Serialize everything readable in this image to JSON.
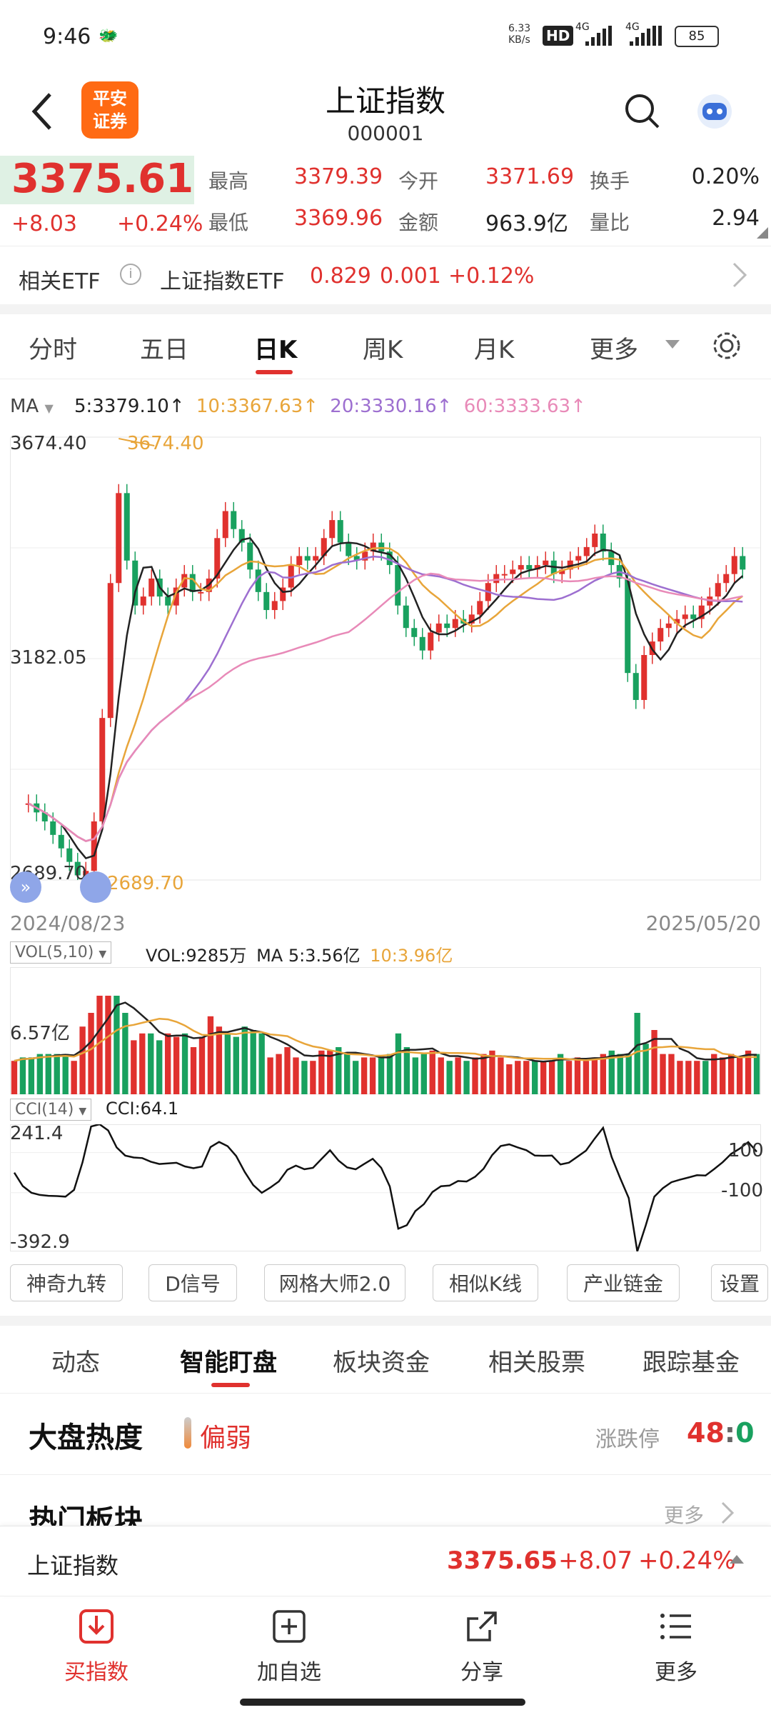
{
  "status": {
    "time": "9:46",
    "net_speed": "6.33 KB/s",
    "hd": "HD",
    "signal1": "4G",
    "signal2": "4G",
    "battery": "85"
  },
  "header": {
    "title": "上证指数",
    "code": "000001",
    "logo_line1": "平安",
    "logo_line2": "证券"
  },
  "quote": {
    "price": "3375.61",
    "change": "+8.03",
    "change_pct": "+0.24%",
    "high_label": "最高",
    "high": "3379.39",
    "open_label": "今开",
    "open": "3371.69",
    "turnover_label": "换手",
    "turnover": "0.20%",
    "low_label": "最低",
    "low": "3369.96",
    "amount_label": "金额",
    "amount": "963.9亿",
    "vol_ratio_label": "量比",
    "vol_ratio": "2.94"
  },
  "etf": {
    "label": "相关ETF",
    "name": "上证指数ETF",
    "price": "0.829",
    "change": "0.001",
    "pct": "+0.12%"
  },
  "tabs": [
    "分时",
    "五日",
    "日K",
    "周K",
    "月K",
    "更多"
  ],
  "ma": {
    "label": "MA",
    "ma5": "5:3379.10↑",
    "ma10": "10:3367.63↑",
    "ma20": "20:3330.16↑",
    "ma60": "60:3333.63↑"
  },
  "chart_labels": {
    "y_high": "3674.40",
    "high_mark": "3674.40",
    "y_mid": "3182.05",
    "y_low": "2689.70",
    "low_mark": "2689.70",
    "date_start": "2024/08/23",
    "date_end": "2025/05/20"
  },
  "vol": {
    "label": "VOL(5,10)",
    "text": "VOL:9285万",
    "ma5": "MA 5:3.56亿",
    "ma10": "10:3.96亿",
    "y_label": "6.57亿"
  },
  "cci": {
    "label": "CCI(14)",
    "text": "CCI:64.1",
    "y_top": "241.4",
    "y_bottom": "-392.9",
    "l100": "100",
    "lm100": "-100"
  },
  "tools": [
    "神奇九转",
    "D信号",
    "网格大师2.0",
    "相似K线",
    "产业链金",
    "设置"
  ],
  "sections": [
    "动态",
    "智能盯盘",
    "板块资金",
    "相关股票",
    "跟踪基金"
  ],
  "heat": {
    "title": "大盘热度",
    "level": "偏弱",
    "limit_label": "涨跌停",
    "up": "48",
    "sep": ":",
    "down": "0"
  },
  "hot": {
    "title": "热门板块",
    "more": "更多"
  },
  "ticker": {
    "name": "上证指数",
    "price": "3375.65",
    "change": "+8.07",
    "pct": "+0.24%"
  },
  "nav": [
    "买指数",
    "加自选",
    "分享",
    "更多"
  ],
  "colors": {
    "up": "#e0312e",
    "down": "#19a15f",
    "ma5": "#222222",
    "ma10": "#e8a53a",
    "ma20": "#9d6fd0",
    "ma60": "#e88ab8"
  },
  "chart_data": {
    "type": "candlestick",
    "date_range": [
      "2024/08/23",
      "2025/05/20"
    ],
    "ylim": [
      2689.7,
      3674.4
    ],
    "ma_series": [
      {
        "name": "MA5",
        "last": 3379.1
      },
      {
        "name": "MA10",
        "last": 3367.63
      },
      {
        "name": "MA20",
        "last": 3330.16
      },
      {
        "name": "MA60",
        "last": 3333.63
      }
    ],
    "close_path": [
      2860,
      2840,
      2820,
      2790,
      2760,
      2730,
      2700,
      2710,
      2820,
      3050,
      3350,
      3550,
      3400,
      3300,
      3320,
      3360,
      3320,
      3300,
      3340,
      3370,
      3330,
      3330,
      3360,
      3450,
      3510,
      3470,
      3440,
      3380,
      3330,
      3290,
      3310,
      3340,
      3390,
      3410,
      3400,
      3410,
      3450,
      3490,
      3440,
      3410,
      3400,
      3420,
      3440,
      3420,
      3390,
      3300,
      3250,
      3230,
      3200,
      3240,
      3260,
      3250,
      3270,
      3260,
      3280,
      3310,
      3350,
      3370,
      3370,
      3380,
      3390,
      3380,
      3390,
      3400,
      3370,
      3380,
      3400,
      3410,
      3430,
      3460,
      3420,
      3390,
      3360,
      3150,
      3090,
      3190,
      3220,
      3250,
      3260,
      3270,
      3280,
      3270,
      3300,
      3320,
      3350,
      3370,
      3410,
      3380
    ]
  }
}
